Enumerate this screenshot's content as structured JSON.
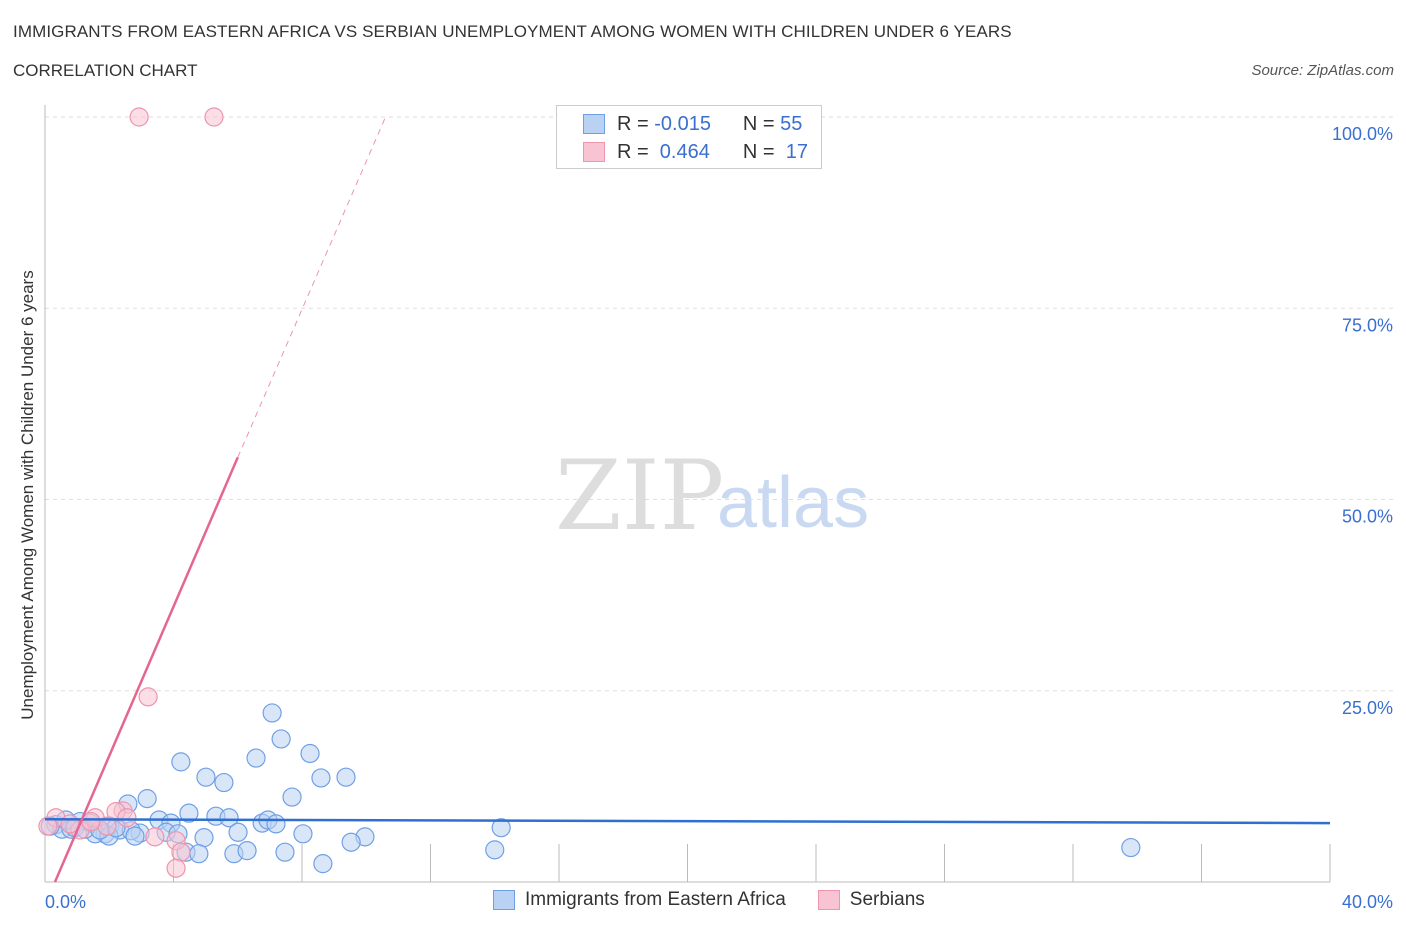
{
  "title": "IMMIGRANTS FROM EASTERN AFRICA VS SERBIAN UNEMPLOYMENT AMONG WOMEN WITH CHILDREN UNDER 6 YEARS",
  "subtitle": "CORRELATION CHART",
  "source": "Source: ZipAtlas.com",
  "watermark": {
    "zip": "ZIP",
    "atlas": "atlas"
  },
  "legend": {
    "rows": [
      {
        "r_label": "R =",
        "r": "-0.015",
        "n_label": "N =",
        "n": "55"
      },
      {
        "r_label": "R =",
        "r": " 0.464",
        "n_label": "N =",
        "n": " 17"
      }
    ]
  },
  "colors": {
    "blue": "#6fa0e6",
    "blue_fill": "#b9d1f3",
    "blue_line": "#2f6fd0",
    "pink": "#ee94ad",
    "pink_fill": "#f8c3d2",
    "pink_line": "#e5668f",
    "tick": "#3a6fd0"
  },
  "chart_data": {
    "type": "scatter",
    "title": "IMMIGRANTS FROM EASTERN AFRICA VS SERBIAN UNEMPLOYMENT AMONG WOMEN WITH CHILDREN UNDER 6 YEARS",
    "xlabel": "",
    "ylabel": "Unemployment Among Women with Children Under 6 years",
    "xlim": [
      0,
      40
    ],
    "ylim": [
      0,
      100
    ],
    "x_tick_labels": [
      "0.0%",
      "40.0%"
    ],
    "y_ticks": [
      25,
      50,
      75,
      100
    ],
    "y_tick_labels": [
      "25.0%",
      "50.0%",
      "75.0%",
      "100.0%"
    ],
    "grid": true,
    "legend_position": "bottom-center",
    "series": [
      {
        "name": "Immigrants from Eastern Africa",
        "R": -0.015,
        "N": 55,
        "trend": {
          "x": [
            0,
            40
          ],
          "y": [
            8.2,
            7.7
          ]
        },
        "points": [
          [
            7.07,
            22.1
          ],
          [
            7.35,
            18.7
          ],
          [
            8.25,
            16.8
          ],
          [
            4.23,
            15.7
          ],
          [
            6.57,
            16.2
          ],
          [
            5.01,
            13.7
          ],
          [
            5.57,
            13.0
          ],
          [
            8.59,
            13.6
          ],
          [
            9.37,
            13.7
          ],
          [
            7.69,
            11.1
          ],
          [
            3.18,
            10.9
          ],
          [
            2.58,
            10.2
          ],
          [
            4.48,
            9.0
          ],
          [
            5.32,
            8.6
          ],
          [
            5.73,
            8.4
          ],
          [
            3.55,
            8.1
          ],
          [
            6.76,
            7.7
          ],
          [
            6.94,
            8.1
          ],
          [
            7.19,
            7.6
          ],
          [
            3.92,
            7.7
          ],
          [
            0.34,
            7.5
          ],
          [
            1.09,
            7.9
          ],
          [
            1.4,
            7.7
          ],
          [
            2.02,
            7.3
          ],
          [
            2.33,
            6.8
          ],
          [
            2.96,
            6.4
          ],
          [
            3.77,
            6.5
          ],
          [
            4.14,
            6.3
          ],
          [
            4.95,
            5.8
          ],
          [
            6.01,
            6.5
          ],
          [
            8.03,
            6.3
          ],
          [
            14.2,
            7.1
          ],
          [
            9.96,
            5.9
          ],
          [
            9.53,
            5.2
          ],
          [
            2.68,
            6.7
          ],
          [
            1.87,
            6.3
          ],
          [
            1.56,
            6.3
          ],
          [
            0.53,
            6.9
          ],
          [
            0.16,
            7.3
          ],
          [
            0.81,
            6.9
          ],
          [
            1.99,
            6.0
          ],
          [
            2.21,
            7.1
          ],
          [
            4.39,
            3.9
          ],
          [
            4.79,
            3.7
          ],
          [
            5.88,
            3.7
          ],
          [
            6.29,
            4.1
          ],
          [
            7.47,
            3.9
          ],
          [
            8.65,
            2.4
          ],
          [
            14.0,
            4.2
          ],
          [
            33.8,
            4.5
          ],
          [
            0.65,
            8.1
          ],
          [
            0.93,
            7.1
          ],
          [
            1.25,
            6.9
          ],
          [
            1.71,
            6.8
          ],
          [
            2.8,
            6.0
          ]
        ]
      },
      {
        "name": "Serbians",
        "R": 0.464,
        "N": 17,
        "trend": {
          "x": [
            0.31,
            6.0
          ],
          "y": [
            0,
            55.5
          ],
          "dashed_to": [
            10.6,
            100
          ]
        },
        "points": [
          [
            2.93,
            100
          ],
          [
            5.26,
            100
          ],
          [
            3.21,
            24.2
          ],
          [
            2.43,
            9.3
          ],
          [
            2.21,
            9.2
          ],
          [
            1.56,
            8.4
          ],
          [
            0.34,
            8.4
          ],
          [
            0.09,
            7.3
          ],
          [
            1.09,
            6.8
          ],
          [
            4.08,
            5.4
          ],
          [
            4.23,
            3.9
          ],
          [
            4.08,
            1.8
          ],
          [
            3.42,
            5.9
          ],
          [
            1.93,
            7.3
          ],
          [
            0.78,
            7.6
          ],
          [
            2.55,
            8.4
          ],
          [
            1.43,
            7.9
          ]
        ]
      }
    ]
  }
}
